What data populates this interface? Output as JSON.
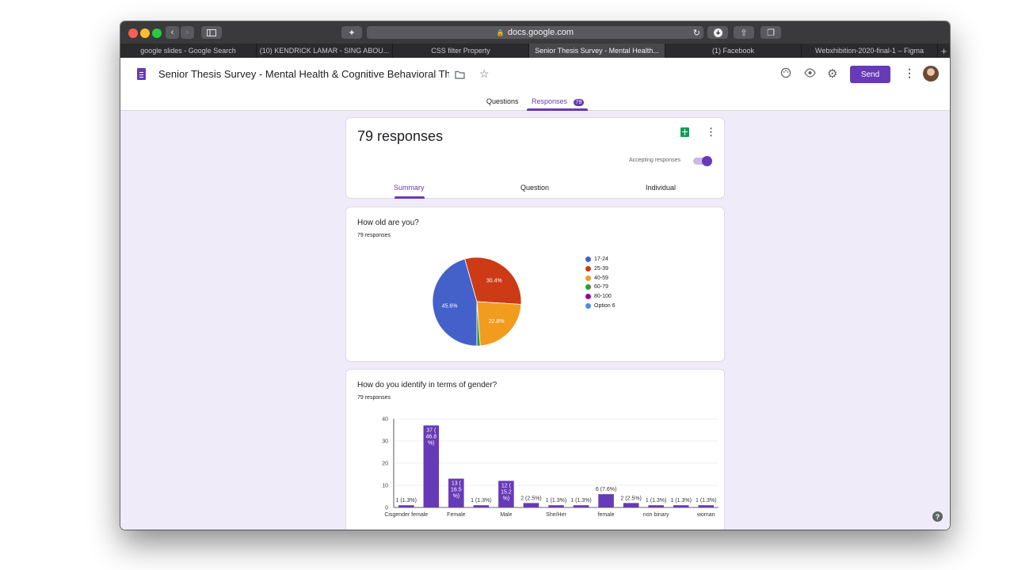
{
  "browser": {
    "url": "docs.google.com",
    "tabs": [
      {
        "label": "google slides - Google Search"
      },
      {
        "label": "(10) KENDRICK LAMAR - SING ABOU..."
      },
      {
        "label": "CSS filter Property"
      },
      {
        "label": "Senior Thesis Survey - Mental Health..."
      },
      {
        "label": "(1) Facebook"
      },
      {
        "label": "Webxhibition-2020-final-1 – Figma"
      }
    ],
    "new_tab": "+"
  },
  "header": {
    "title": "Senior Thesis Survey - Mental Health & Cognitive Behavioral The",
    "send_label": "Send",
    "nav": {
      "questions": "Questions",
      "responses": "Responses",
      "responses_count": "79"
    },
    "accent": "#673ab7"
  },
  "summary": {
    "count_label": "79 responses",
    "accepting_label": "Accepting responses",
    "tabs": {
      "summary": "Summary",
      "question": "Question",
      "individual": "Individual"
    }
  },
  "q1": {
    "title": "How old are you?",
    "responses": "79 responses",
    "slice_labels": [
      "45.6%",
      "30.4%",
      "22.8%"
    ]
  },
  "q2": {
    "title": "How do you identify in terms of gender?",
    "responses": "79 responses"
  },
  "chart_data": [
    {
      "type": "pie",
      "categories": [
        "17-24",
        "25-39",
        "40-59",
        "60-79",
        "80-100",
        "Option 6"
      ],
      "values": [
        45.6,
        30.4,
        22.8,
        1.2,
        0,
        0
      ],
      "colors": [
        "#4361c9",
        "#cc3a16",
        "#f19c1f",
        "#2f9a3a",
        "#990099",
        "#4d8ee0"
      ],
      "legend": "right"
    },
    {
      "type": "bar",
      "categories": [
        "Cisgender female",
        "",
        "Female",
        "",
        "Male",
        "",
        "She/Her",
        "",
        "female",
        "",
        "non binary",
        "",
        "woman"
      ],
      "values": [
        1,
        37,
        13,
        1,
        12,
        2,
        1,
        1,
        6,
        2,
        1,
        1,
        1
      ],
      "data_labels": [
        "1 (1.3%)",
        "37 (46.8%)",
        "13 (16.5%)",
        "1 (1.3%)",
        "12 (15.2%)",
        "2 (2.5%)",
        "1 (1.3%)",
        "1 (1.3%)",
        "6 (7.6%)",
        "2 (2.5%)",
        "1 (1.3%)",
        "1 (1.3%)",
        "1 (1.3%)"
      ],
      "visible_x_labels": [
        "Cisgender female",
        "Female",
        "Male",
        "She/Her",
        "female",
        "non binary",
        "woman"
      ],
      "y_ticks": [
        0,
        10,
        20,
        30,
        40
      ],
      "ylim": [
        0,
        40
      ],
      "color": "#673ab7",
      "grid": true
    }
  ]
}
